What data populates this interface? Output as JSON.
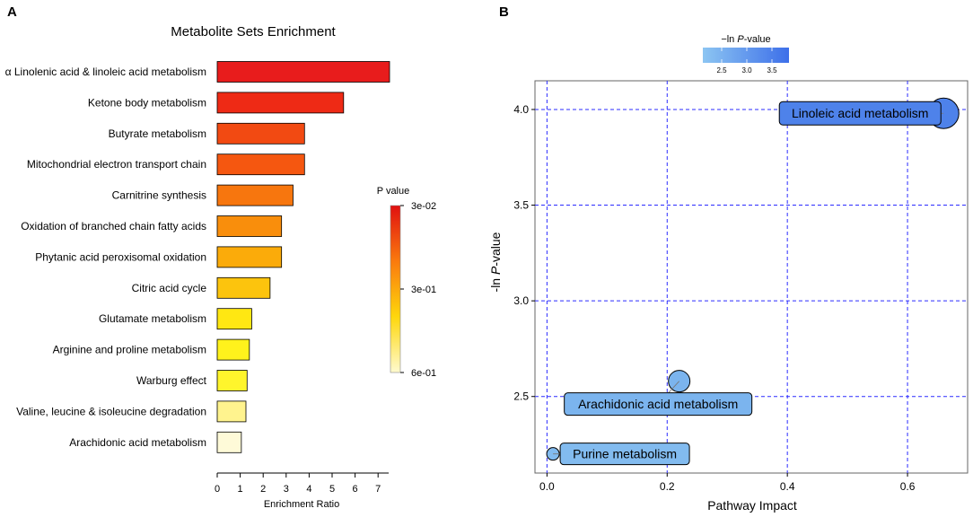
{
  "panels": {
    "a_label": "A",
    "b_label": "B"
  },
  "chart_data": [
    {
      "type": "bar",
      "orientation": "horizontal",
      "title": "Metabolite Sets Enrichment",
      "xlabel": "Enrichment Ratio",
      "ylabel": "",
      "xlim": [
        0,
        7.6
      ],
      "xticks": [
        0,
        1,
        2,
        3,
        4,
        5,
        6,
        7
      ],
      "categories": [
        "α Linolenic acid & linoleic acid metabolism",
        "Ketone body metabolism",
        "Butyrate metabolism",
        "Mitochondrial electron transport chain",
        "Carnitrine synthesis",
        "Oxidation of branched chain fatty acids",
        "Phytanic acid peroxisomal oxidation",
        "Citric acid cycle",
        "Glutamate metabolism",
        "Arginine and proline metabolism",
        "Warburg effect",
        "Valine, leucine & isoleucine degradation",
        "Arachidonic acid metabolism"
      ],
      "values": [
        7.5,
        5.5,
        3.8,
        3.8,
        3.3,
        2.8,
        2.8,
        2.3,
        1.5,
        1.4,
        1.3,
        1.25,
        1.05
      ],
      "bar_colors": [
        "#e81c1c",
        "#ee2a15",
        "#f24a12",
        "#f55710",
        "#f7760e",
        "#f98e0c",
        "#fbab0a",
        "#fcc40d",
        "#ffe712",
        "#fff21c",
        "#fff52c",
        "#fff38e",
        "#fefad8"
      ],
      "legend": {
        "title": "P value",
        "placement": "right",
        "labels": [
          "3e-02",
          "3e-01",
          "6e-01"
        ],
        "colors": [
          "#e01010",
          "#fa7a0e",
          "#fed70c",
          "#fffacf"
        ]
      }
    },
    {
      "type": "scatter",
      "title": "",
      "xlabel": "Pathway Impact",
      "ylabel_prefix": "-ln ",
      "ylabel_p": "P",
      "ylabel_suffix": "-value",
      "xlim": [
        -0.02,
        0.7
      ],
      "ylim": [
        2.1,
        4.15
      ],
      "xticks": [
        0.0,
        0.2,
        0.4,
        0.6
      ],
      "xtick_labels": [
        "0.0",
        "0.2",
        "0.4",
        "0.6"
      ],
      "yticks": [
        2.5,
        3.0,
        3.5,
        4.0
      ],
      "ytick_labels": [
        "2.5",
        "3.0",
        "3.5",
        "4.0"
      ],
      "points": [
        {
          "name": "Linoleic acid metabolism",
          "x": 0.66,
          "y": 3.98,
          "color": "#4e82ea",
          "size": 3
        },
        {
          "name": "Arachidonic acid metabolism",
          "x": 0.22,
          "y": 2.58,
          "color": "#7bb4ee",
          "size": 2
        },
        {
          "name": "Purine metabolism",
          "x": 0.01,
          "y": 2.2,
          "color": "#82bbef",
          "size": 1
        }
      ],
      "legend": {
        "title_prefix": "−ln ",
        "title_p": "P",
        "title_suffix": "-value",
        "placement": "top",
        "tick_labels": [
          "2.5",
          "3.0",
          "3.5"
        ],
        "colors": [
          "#8cc5f2",
          "#3d6fe9"
        ]
      }
    }
  ]
}
